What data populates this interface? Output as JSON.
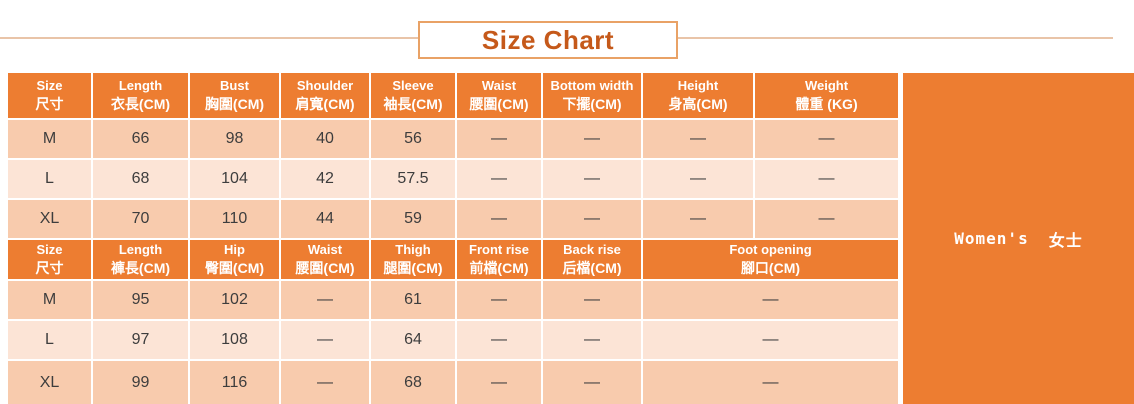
{
  "title": "Size Chart",
  "sidebar": {
    "label_en": "Women's",
    "label_zh": "女士"
  },
  "colors": {
    "header_orange": "#ED7D31",
    "row_dark_peach": "#F8CBAD",
    "row_light_peach": "#FCE4D6",
    "title_text": "#C5591A",
    "title_border": "#E9A266"
  },
  "table1": {
    "headers": [
      {
        "en": "Size",
        "zh": "尺寸"
      },
      {
        "en": "Length",
        "zh": "衣長(CM)"
      },
      {
        "en": "Bust",
        "zh": "胸圍(CM)"
      },
      {
        "en": "Shoulder",
        "zh": "肩寬(CM)"
      },
      {
        "en": "Sleeve",
        "zh": "袖長(CM)"
      },
      {
        "en": "Waist",
        "zh": "腰圍(CM)"
      },
      {
        "en": "Bottom width",
        "zh": "下擺(CM)"
      },
      {
        "en": "Height",
        "zh": "身高(CM)"
      },
      {
        "en": "Weight",
        "zh": "體重 (KG)"
      }
    ],
    "rows": [
      [
        "M",
        "66",
        "98",
        "40",
        "56",
        "—",
        "—",
        "—",
        "—"
      ],
      [
        "L",
        "68",
        "104",
        "42",
        "57.5",
        "—",
        "—",
        "—",
        "—"
      ],
      [
        "XL",
        "70",
        "110",
        "44",
        "59",
        "—",
        "—",
        "—",
        "—"
      ]
    ]
  },
  "table2": {
    "headers": [
      {
        "en": "Size",
        "zh": "尺寸"
      },
      {
        "en": "Length",
        "zh": "褲長(CM)"
      },
      {
        "en": "Hip",
        "zh": "臀圍(CM)"
      },
      {
        "en": "Waist",
        "zh": "腰圍(CM)"
      },
      {
        "en": "Thigh",
        "zh": "腿圍(CM)"
      },
      {
        "en": "Front rise",
        "zh": "前檔(CM)"
      },
      {
        "en": "Back rise",
        "zh": "后檔(CM)"
      },
      {
        "en": "Foot opening",
        "zh": "腳口(CM)"
      }
    ],
    "rows": [
      [
        "M",
        "95",
        "102",
        "—",
        "61",
        "—",
        "—",
        "—"
      ],
      [
        "L",
        "97",
        "108",
        "—",
        "64",
        "—",
        "—",
        "—"
      ],
      [
        "XL",
        "99",
        "116",
        "—",
        "68",
        "—",
        "—",
        "—"
      ]
    ]
  }
}
